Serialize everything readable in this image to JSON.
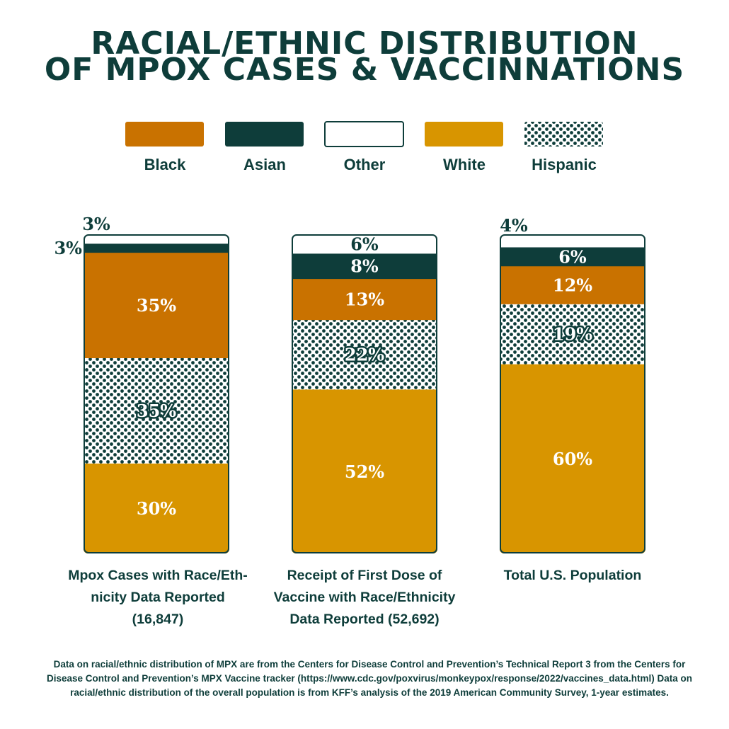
{
  "title_lines": [
    "RACIAL/ETHNIC DISTRIBUTION",
    "OF MPOX CASES & VACCINNATIONS"
  ],
  "colors": {
    "Black": "#c97200",
    "Asian": "#0e3d3a",
    "Other": "#ffffff",
    "White": "#d89500",
    "Hispanic": "#0e3d3a",
    "text_dark": "#0e3d3a"
  },
  "chart_data": {
    "type": "bar",
    "stacked": true,
    "normalized": true,
    "legend_placement": "top",
    "legend": [
      "Black",
      "Asian",
      "Other",
      "White",
      "Hispanic"
    ],
    "categories": [
      [
        "Mpox Cases with Race/Eth-",
        "nicity Data Reported",
        "(16,847)"
      ],
      [
        "Receipt of First Dose of",
        "Vaccine with Race/Ethnicity",
        "Data Reported (52,692)"
      ],
      [
        "Total U.S. Population"
      ]
    ],
    "series": [
      {
        "name": "White",
        "values": [
          30,
          52,
          60
        ],
        "labels": [
          "30%",
          "52%",
          "60%"
        ]
      },
      {
        "name": "Hispanic",
        "values": [
          35,
          22,
          19
        ],
        "labels": [
          "35%",
          "22%",
          "19%"
        ]
      },
      {
        "name": "Black",
        "values": [
          35,
          13,
          12
        ],
        "labels": [
          "35%",
          "13%",
          "12%"
        ]
      },
      {
        "name": "Asian",
        "values": [
          3,
          8,
          6
        ],
        "labels": [
          "3%",
          "8%",
          "6%"
        ]
      },
      {
        "name": "Other",
        "values": [
          3,
          6,
          4
        ],
        "labels": [
          "3%",
          "6%",
          "4%"
        ]
      }
    ]
  },
  "footnote_lines": [
    "Data on racial/ethnic distribution of MPX are from the Centers for Disease Control and Prevention’s Technical Report 3 from the Centers for",
    "Disease Control and Prevention’s MPX Vaccine tracker (https://www.cdc.gov/poxvirus/monkeypox/response/2022/vaccines_data.html) Data on",
    "racial/ethnic distribution of the overall population is from KFF’s analysis of the 2019 American Community Survey, 1-year estimates."
  ]
}
